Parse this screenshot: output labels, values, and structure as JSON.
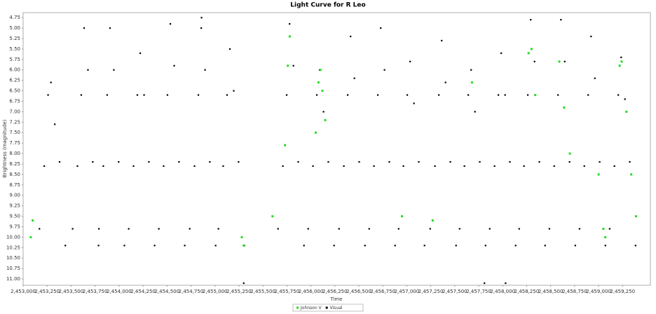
{
  "chart_data": {
    "type": "scatter",
    "title": "Light Curve for R Leo",
    "x_label": "Time",
    "y_label": "Brightness (magnitude)",
    "xlim": [
      2453000,
      2459540
    ],
    "ylim": [
      4.63,
      11.15
    ],
    "y_inverted": true,
    "legend": "bottom",
    "xticks": [
      {
        "value": 2453000,
        "label": "2,453,000"
      },
      {
        "value": 2453250,
        "label": "2,453,250"
      },
      {
        "value": 2453500,
        "label": "2,453,500"
      },
      {
        "value": 2453750,
        "label": "2,453,750"
      },
      {
        "value": 2454000,
        "label": "2,454,000"
      },
      {
        "value": 2454250,
        "label": "2,454,250"
      },
      {
        "value": 2454500,
        "label": "2,454,500"
      },
      {
        "value": 2454750,
        "label": "2,454,750"
      },
      {
        "value": 2455000,
        "label": "2,455,000"
      },
      {
        "value": 2455250,
        "label": "2,455,250"
      },
      {
        "value": 2455500,
        "label": "2,455,500"
      },
      {
        "value": 2455750,
        "label": "2,455,750"
      },
      {
        "value": 2456000,
        "label": "2,456,000"
      },
      {
        "value": 2456250,
        "label": "2,456,250"
      },
      {
        "value": 2456500,
        "label": "2,456,500"
      },
      {
        "value": 2456750,
        "label": "2,456,750"
      },
      {
        "value": 2457000,
        "label": "2,457,000"
      },
      {
        "value": 2457250,
        "label": "2,457,250"
      },
      {
        "value": 2457500,
        "label": "2,457,500"
      },
      {
        "value": 2457750,
        "label": "2,457,750"
      },
      {
        "value": 2458000,
        "label": "2,458,000"
      },
      {
        "value": 2458250,
        "label": "2,458,250"
      },
      {
        "value": 2458500,
        "label": "2,458,500"
      },
      {
        "value": 2458750,
        "label": "2,458,750"
      },
      {
        "value": 2459000,
        "label": "2,459,000"
      },
      {
        "value": 2459250,
        "label": "2,459,250"
      }
    ],
    "yticks": [
      4.75,
      {
        "value": 5,
        "label": "5.00"
      },
      5.25,
      {
        "value": 5.5,
        "label": "5.50"
      },
      5.75,
      {
        "value": 6,
        "label": "6.00"
      },
      6.25,
      {
        "value": 6.5,
        "label": "6.50"
      },
      6.75,
      {
        "value": 7,
        "label": "7.00"
      },
      7.25,
      {
        "value": 7.5,
        "label": "7.50"
      },
      7.75,
      {
        "value": 8,
        "label": "8.00"
      },
      8.25,
      {
        "value": 8.5,
        "label": "8.50"
      },
      8.75,
      {
        "value": 9,
        "label": "9.00"
      },
      9.25,
      {
        "value": 9.5,
        "label": "9.50"
      },
      9.75,
      {
        "value": 10,
        "label": "10.00"
      },
      10.25,
      {
        "value": 10.5,
        "label": "10.50"
      },
      10.75,
      {
        "value": 11,
        "label": "11.00"
      }
    ],
    "series": [
      {
        "name": "Johnson V",
        "color": "#22dd22",
        "x": [
          2456050,
          2456080,
          2456100,
          2456120,
          2456150,
          2455730,
          2455760,
          2455780,
          2458270,
          2458300,
          2458340,
          2458590,
          2458640,
          2458700,
          2459220,
          2459240,
          2459290,
          2459340,
          2459390,
          2459000,
          2459050,
          2459070,
          2455280,
          2455300,
          2453080,
          2453100,
          2455600,
          2457270,
          2457680,
          2456950
        ],
        "values": [
          7.5,
          6.3,
          6.0,
          6.5,
          7.2,
          7.8,
          5.9,
          5.2,
          5.6,
          5.5,
          6.6,
          5.8,
          6.9,
          8.0,
          5.9,
          5.8,
          7.0,
          8.5,
          9.5,
          8.5,
          9.8,
          10.0,
          10.0,
          10.2,
          10.0,
          9.6,
          9.5,
          9.6,
          6.3,
          9.5
        ]
      },
      {
        "name": "Visual",
        "color": "#000000",
        "x": [
          2453170,
          2453220,
          2453260,
          2453290,
          2453330,
          2453380,
          2453440,
          2453516,
          2453566,
          2453606,
          2453636,
          2453676,
          2453726,
          2453786,
          2453790,
          2453836,
          2453876,
          2453906,
          2453946,
          2453996,
          2454056,
          2454101,
          2454151,
          2454191,
          2454221,
          2454261,
          2454311,
          2454371,
          2454415,
          2454465,
          2454505,
          2454535,
          2454575,
          2454625,
          2454685,
          2454737,
          2454787,
          2454827,
          2454857,
          2454897,
          2454947,
          2455007,
          2455036,
          2455086,
          2455126,
          2455156,
          2455196,
          2455246,
          2455306,
          2455658,
          2455708,
          2455748,
          2455778,
          2455818,
          2455868,
          2455928,
          2455972,
          2456022,
          2456062,
          2456092,
          2456132,
          2456182,
          2456242,
          2456294,
          2456344,
          2456384,
          2456414,
          2456454,
          2456504,
          2456564,
          2456608,
          2456658,
          2456698,
          2456728,
          2456768,
          2456818,
          2456878,
          2456915,
          2456965,
          2457005,
          2457035,
          2457075,
          2457125,
          2457185,
          2457244,
          2457294,
          2457334,
          2457364,
          2457404,
          2457454,
          2457514,
          2457551,
          2457601,
          2457641,
          2457671,
          2457711,
          2457761,
          2457821,
          2457865,
          2457915,
          2457955,
          2457985,
          2458025,
          2458075,
          2458135,
          2458172,
          2458222,
          2458262,
          2458292,
          2458332,
          2458382,
          2458442,
          2458487,
          2458537,
          2458577,
          2458607,
          2458647,
          2458697,
          2458757,
          2458801,
          2458851,
          2458891,
          2458921,
          2458961,
          2459011,
          2459071,
          2459115,
          2459165,
          2459205,
          2459235,
          2459275,
          2459325,
          2459385,
          2454860,
          2455300,
          2457810,
          2458030
        ],
        "values": [
          9.8,
          8.3,
          6.6,
          6.3,
          7.3,
          8.2,
          10.2,
          9.8,
          8.3,
          6.6,
          5.0,
          6.0,
          8.2,
          10.2,
          9.8,
          8.3,
          6.6,
          5.0,
          6.0,
          8.2,
          10.2,
          9.8,
          8.3,
          6.6,
          5.6,
          6.6,
          8.2,
          10.2,
          9.8,
          8.3,
          6.6,
          4.9,
          5.9,
          8.2,
          10.2,
          9.8,
          8.3,
          6.6,
          5.0,
          6.0,
          8.2,
          10.2,
          9.8,
          8.3,
          6.6,
          5.5,
          6.5,
          8.2,
          10.2,
          9.8,
          8.3,
          6.6,
          4.9,
          5.9,
          8.2,
          10.2,
          9.8,
          8.3,
          6.6,
          6.0,
          7.0,
          8.2,
          10.2,
          9.8,
          8.3,
          6.6,
          5.2,
          6.2,
          8.2,
          10.2,
          9.8,
          8.3,
          6.6,
          5.0,
          6.0,
          8.2,
          10.2,
          9.8,
          8.3,
          6.6,
          5.8,
          6.8,
          8.2,
          10.2,
          9.8,
          8.3,
          6.6,
          5.3,
          6.3,
          8.2,
          10.2,
          9.8,
          8.3,
          6.6,
          6.0,
          7.0,
          8.2,
          10.2,
          9.8,
          8.3,
          6.6,
          5.6,
          6.6,
          8.2,
          10.2,
          9.8,
          8.3,
          6.6,
          4.8,
          5.8,
          8.2,
          10.2,
          9.8,
          8.3,
          6.6,
          4.8,
          5.8,
          8.2,
          10.2,
          9.8,
          8.3,
          6.6,
          5.2,
          6.2,
          8.2,
          10.2,
          9.8,
          8.3,
          6.6,
          5.7,
          6.7,
          8.2,
          10.2,
          4.75,
          11.1,
          11.1,
          11.1
        ]
      }
    ]
  }
}
